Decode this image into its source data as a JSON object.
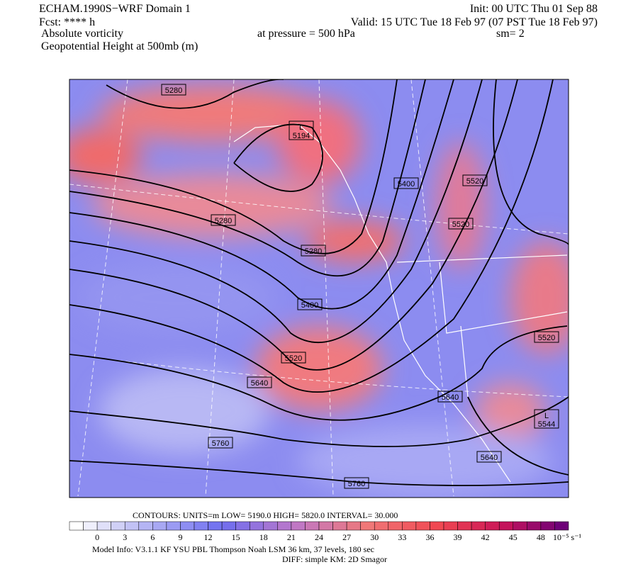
{
  "header": {
    "left": [
      "ECHAM.1990S−WRF Domain 1",
      "Fcst: **** h",
      "Absolute vorticity",
      "Geopotential Height at 500mb (m)"
    ],
    "init": "Init: 00 UTC Thu 01 Sep 88",
    "valid": "Valid: 15 UTC Tue 18 Feb 97 (07 PST Tue 18 Feb 97)",
    "pressure": "at pressure =  500 hPa",
    "smooth": "sm= 2"
  },
  "map": {
    "contour_labels": [
      "5280",
      "5400",
      "5520",
      "5280",
      "5280",
      "5520",
      "5400",
      "5520",
      "5640",
      "5640",
      "5520",
      "5760",
      "5640",
      "5760"
    ],
    "lows": [
      {
        "mark": "L",
        "value": "5194"
      },
      {
        "mark": "L",
        "value": "5544"
      }
    ]
  },
  "colorbar": {
    "labels": [
      "0",
      "3",
      "6",
      "9",
      "12",
      "15",
      "18",
      "21",
      "24",
      "27",
      "30",
      "33",
      "36",
      "39",
      "42",
      "45",
      "48"
    ],
    "unit": "10⁻⁵ s⁻¹"
  },
  "footer": {
    "contours": "CONTOURS:  UNITS=m  LOW=  5190.0     HIGH=  5820.0     INTERVAL=  30.000",
    "model": "Model Info: V3.1.1    KF       YSU PBL   Thompson     Noah LSM  36 km,     37 levels,   180 sec",
    "diff": "DIFF: simple KM: 2D Smagor"
  }
}
